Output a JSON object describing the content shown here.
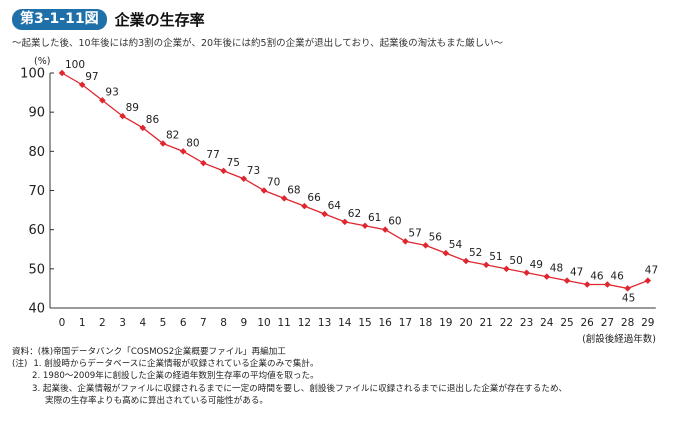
{
  "header": {
    "figure_number": "第3-1-11図",
    "title": "企業の生存率",
    "subtitle": "〜起業した後、10年後には約3割の企業が、20年後には約5割の企業が退出しており、起業後の淘汰もまた厳しい〜"
  },
  "chart_data": {
    "type": "line",
    "title": "企業の生存率",
    "xlabel": "(創設後経過年数)",
    "ylabel": "(%)",
    "x": [
      0,
      1,
      2,
      3,
      4,
      5,
      6,
      7,
      8,
      9,
      10,
      11,
      12,
      13,
      14,
      15,
      16,
      17,
      18,
      19,
      20,
      21,
      22,
      23,
      24,
      25,
      26,
      27,
      28,
      29
    ],
    "series": [
      {
        "values": [
          100,
          97,
          93,
          89,
          86,
          82,
          80,
          77,
          75,
          73,
          70,
          68,
          66,
          64,
          62,
          61,
          60,
          57,
          56,
          54,
          52,
          51,
          50,
          49,
          48,
          47,
          46,
          46,
          45,
          47
        ]
      }
    ],
    "ylim": [
      40,
      100
    ],
    "yticks": [
      40,
      50,
      60,
      70,
      80,
      90,
      100
    ],
    "grid": false,
    "line_color": "#e0262f"
  },
  "footnotes": {
    "source": "資料：(株)帝国データバンク「COSMOS2企業概要ファイル」再編加工",
    "note_prefix": "(注)",
    "notes": [
      "1. 創設時からデータベースに企業情報が収録されている企業のみで集計。",
      "2. 1980〜2009年に創設した企業の経過年数別生存率の平均値を取った。",
      "3. 起業後、企業情報がファイルに収録されるまでに一定の時間を要し、創設後ファイルに収録されるまでに退出した企業が存在するため、"
    ],
    "note3_cont": "実際の生存率よりも高めに算出されている可能性がある。"
  }
}
